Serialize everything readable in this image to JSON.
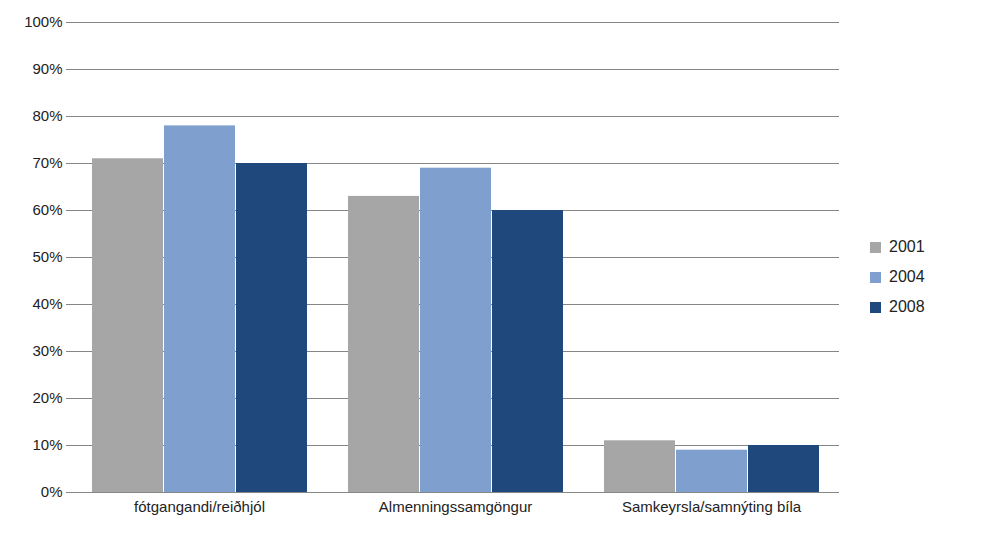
{
  "chart_data": {
    "type": "bar",
    "categories": [
      "fótgangandi/reiðhjól",
      "Almenningssamgöngur",
      "Samkeyrsla/samnýting bíla"
    ],
    "series": [
      {
        "name": "2001",
        "color": "#a6a6a6",
        "values": [
          71,
          63,
          11
        ]
      },
      {
        "name": "2004",
        "color": "#7f9fcf",
        "values": [
          78,
          69,
          9
        ]
      },
      {
        "name": "2008",
        "color": "#1f497d",
        "values": [
          70,
          60,
          10
        ]
      }
    ],
    "ylim": [
      0,
      100
    ],
    "yticks": [
      {
        "value": 0,
        "label": "0%"
      },
      {
        "value": 10,
        "label": "10%"
      },
      {
        "value": 20,
        "label": "20%"
      },
      {
        "value": 30,
        "label": "30%"
      },
      {
        "value": 40,
        "label": "40%"
      },
      {
        "value": 50,
        "label": "50%"
      },
      {
        "value": 60,
        "label": "60%"
      },
      {
        "value": 70,
        "label": "70%"
      },
      {
        "value": 80,
        "label": "80%"
      },
      {
        "value": 90,
        "label": "90%"
      },
      {
        "value": 100,
        "label": "100%"
      }
    ],
    "grid": true,
    "legend": "right"
  }
}
